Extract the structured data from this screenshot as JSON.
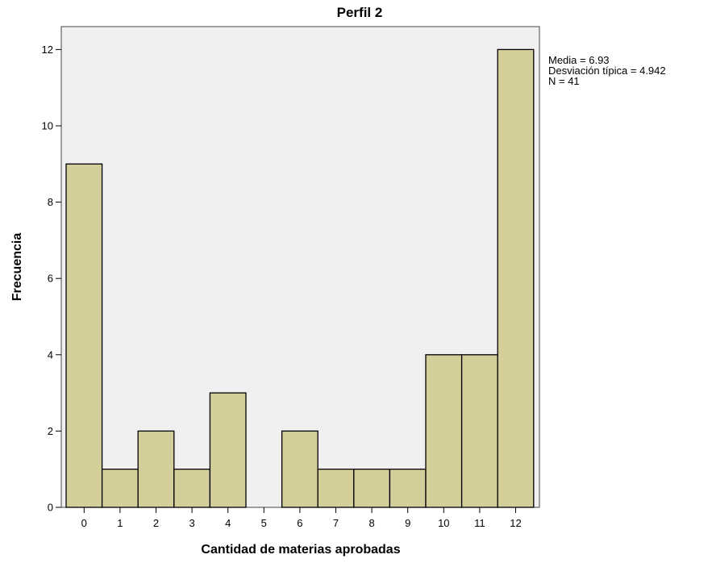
{
  "chart_data": {
    "type": "bar",
    "title": "Perfil 2",
    "xlabel": "Cantidad de materias aprobadas",
    "ylabel": "Frecuencia",
    "categories": [
      "0",
      "1",
      "2",
      "3",
      "4",
      "5",
      "6",
      "7",
      "8",
      "9",
      "10",
      "11",
      "12"
    ],
    "values": [
      9,
      1,
      2,
      1,
      3,
      0,
      2,
      1,
      1,
      1,
      4,
      4,
      12
    ],
    "ylim": [
      0,
      12.6
    ],
    "yticks": [
      0,
      2,
      4,
      6,
      8,
      10,
      12
    ],
    "grid": false,
    "stats": [
      "Media = 6.93",
      "Desviación típica = 4.942",
      "N = 41"
    ],
    "colors": {
      "plot_background": "#f0f0f0",
      "bar_fill": "#d3ce9a",
      "bar_stroke": "#000000"
    }
  }
}
